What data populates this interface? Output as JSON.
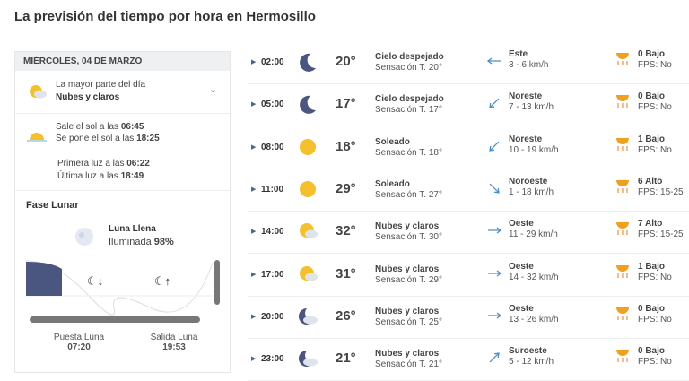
{
  "title": "La previsión del tiempo por hora en Hermosillo",
  "day": {
    "header": "MIÉRCOLES, 04 DE MARZO",
    "summary_label": "La mayor parte del día",
    "summary": "Nubes y claros",
    "sunrise_label": "Sale el sol a las",
    "sunrise": "06:45",
    "sunset_label": "Se pone el sol a las",
    "sunset": "18:25",
    "first_light_label": "Primera luz a las",
    "first_light": "06:22",
    "last_light_label": "Última luz a las",
    "last_light": "18:49"
  },
  "moon": {
    "title": "Fase Lunar",
    "phase": "Luna Llena",
    "illum_label": "Iluminada",
    "illum": "98%",
    "set_label": "Puesta Luna",
    "set": "07:20",
    "rise_label": "Salida Luna",
    "rise": "19:53"
  },
  "colors": {
    "accent": "#4b6584",
    "moon_fill": "#4a5680",
    "sun": "#f5c02e"
  },
  "hours": [
    {
      "time": "02:00",
      "icon": "moon",
      "temp": "20°",
      "cond": "Cielo despejado",
      "feels": "Sensación T. 20°",
      "wind_dir": "Este",
      "wind": "3 - 6 km/h",
      "uv": "0 Bajo",
      "fps": "FPS: No"
    },
    {
      "time": "05:00",
      "icon": "moon",
      "temp": "17°",
      "cond": "Cielo despejado",
      "feels": "Sensación T. 17°",
      "wind_dir": "Noreste",
      "wind": "7 - 13 km/h",
      "uv": "0 Bajo",
      "fps": "FPS: No"
    },
    {
      "time": "08:00",
      "icon": "sun",
      "temp": "18°",
      "cond": "Soleado",
      "feels": "Sensación T. 18°",
      "wind_dir": "Noreste",
      "wind": "10 - 19 km/h",
      "uv": "1 Bajo",
      "fps": "FPS: No"
    },
    {
      "time": "11:00",
      "icon": "sun",
      "temp": "29°",
      "cond": "Soleado",
      "feels": "Sensación T. 27°",
      "wind_dir": "Noroeste",
      "wind": "1 - 18 km/h",
      "uv": "6 Alto",
      "fps": "FPS: 15-25"
    },
    {
      "time": "14:00",
      "icon": "sun-cloud",
      "temp": "32°",
      "cond": "Nubes y claros",
      "feels": "Sensación T. 30°",
      "wind_dir": "Oeste",
      "wind": "11 - 29 km/h",
      "uv": "7 Alto",
      "fps": "FPS: 15-25"
    },
    {
      "time": "17:00",
      "icon": "sun-cloud",
      "temp": "31°",
      "cond": "Nubes y claros",
      "feels": "Sensación T. 29°",
      "wind_dir": "Oeste",
      "wind": "14 - 32 km/h",
      "uv": "1 Bajo",
      "fps": "FPS: No"
    },
    {
      "time": "20:00",
      "icon": "moon-cloud",
      "temp": "26°",
      "cond": "Nubes y claros",
      "feels": "Sensación T. 25°",
      "wind_dir": "Oeste",
      "wind": "13 - 26 km/h",
      "uv": "0 Bajo",
      "fps": "FPS: No"
    },
    {
      "time": "23:00",
      "icon": "moon-cloud",
      "temp": "21°",
      "cond": "Nubes y claros",
      "feels": "Sensación T. 21°",
      "wind_dir": "Suroeste",
      "wind": "5 - 12 km/h",
      "uv": "0 Bajo",
      "fps": "FPS: No"
    }
  ]
}
